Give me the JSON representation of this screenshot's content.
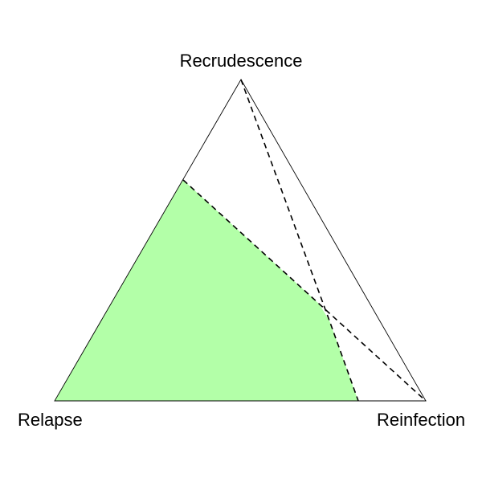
{
  "vertices": {
    "top": "Recrudescence",
    "left": "Relapse",
    "right": "Reinfection"
  },
  "colors": {
    "region_fill": "#b3ffa8",
    "outline": "#000000",
    "background": "#ffffff"
  }
}
